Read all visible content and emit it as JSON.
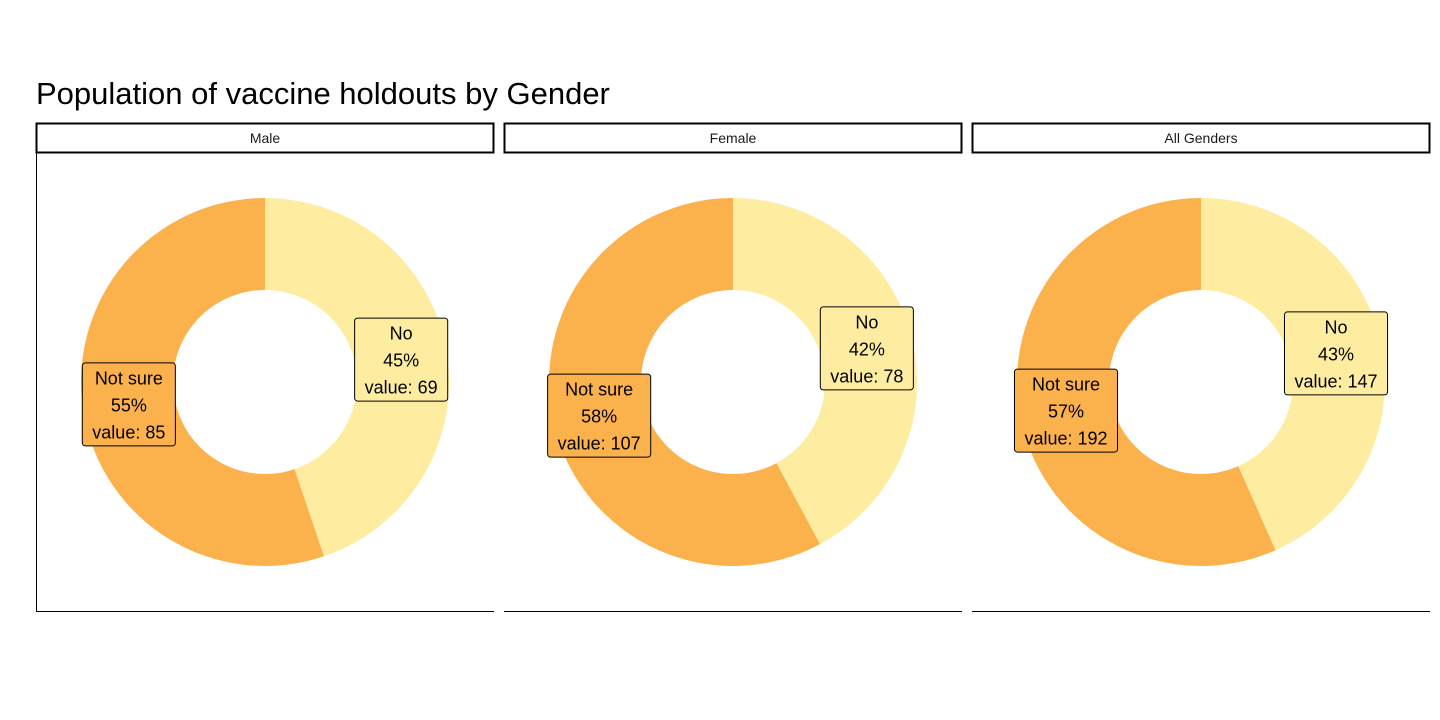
{
  "chart_data": {
    "type": "pie",
    "subtype": "donut",
    "title": "Population of vaccine holdouts by Gender",
    "colors": {
      "No": "#FEEDA0",
      "Not sure": "#FBB24D",
      "frame": "#000000"
    },
    "value_prefix": "value: ",
    "facets": [
      {
        "name": "Male",
        "slices": [
          {
            "label": "No",
            "percent": "45%",
            "value": 69
          },
          {
            "label": "Not sure",
            "percent": "55%",
            "value": 85
          }
        ]
      },
      {
        "name": "Female",
        "slices": [
          {
            "label": "No",
            "percent": "42%",
            "value": 78
          },
          {
            "label": "Not sure",
            "percent": "58%",
            "value": 107
          }
        ]
      },
      {
        "name": "All Genders",
        "slices": [
          {
            "label": "No",
            "percent": "43%",
            "value": 147
          },
          {
            "label": "Not sure",
            "percent": "57%",
            "value": 192
          }
        ]
      }
    ]
  }
}
